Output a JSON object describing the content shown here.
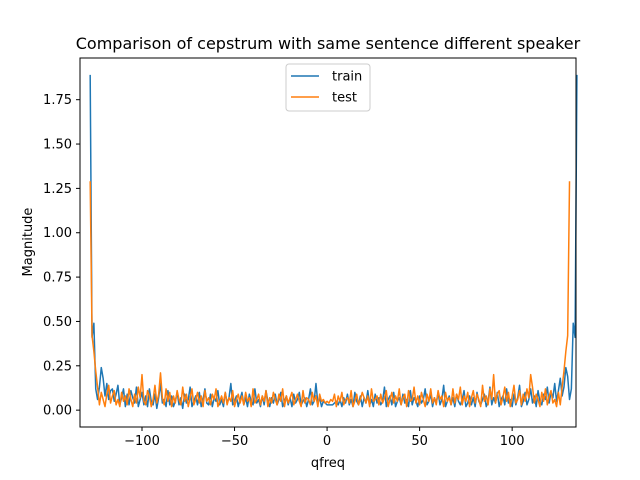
{
  "chart_data": {
    "type": "line",
    "title": "Comparison of cepstrum with same sentence different speaker",
    "xlabel": "qfreq",
    "ylabel": "Magnitude",
    "xlim": [
      -133.5,
      134.5
    ],
    "ylim": [
      -0.095,
      1.985
    ],
    "xticks": [
      -100,
      -50,
      0,
      50,
      100
    ],
    "xtick_labels": [
      "−100",
      "−50",
      "0",
      "50",
      "100"
    ],
    "yticks": [
      0.0,
      0.25,
      0.5,
      0.75,
      1.0,
      1.25,
      1.5,
      1.75
    ],
    "ytick_labels": [
      "0.00",
      "0.25",
      "0.50",
      "0.75",
      "1.00",
      "1.25",
      "1.50",
      "1.75"
    ],
    "grid": false,
    "legend_position": "top-center",
    "series": [
      {
        "name": "train",
        "color": "#1f77b4",
        "x_start": -128,
        "x_step": 1,
        "values": [
          1.89,
          0.41,
          0.49,
          0.12,
          0.06,
          0.13,
          0.24,
          0.18,
          0.08,
          0.15,
          0.06,
          0.11,
          0.12,
          0.05,
          0.09,
          0.14,
          0.03,
          0.07,
          0.12,
          0.02,
          0.09,
          0.03,
          0.11,
          0.07,
          0.04,
          0.13,
          0.02,
          0.06,
          0.1,
          0.03,
          0.08,
          0.02,
          0.12,
          0.05,
          0.03,
          0.09,
          0.01,
          0.07,
          0.15,
          0.04,
          0.06,
          0.02,
          0.11,
          0.03,
          0.08,
          0.02,
          0.05,
          0.1,
          0.03,
          0.07,
          0.01,
          0.09,
          0.04,
          0.06,
          0.13,
          0.02,
          0.05,
          0.08,
          0.03,
          0.1,
          0.02,
          0.06,
          0.12,
          0.04,
          0.03,
          0.09,
          0.02,
          0.07,
          0.05,
          0.11,
          0.03,
          0.06,
          0.02,
          0.1,
          0.04,
          0.07,
          0.15,
          0.03,
          0.05,
          0.08,
          0.02,
          0.06,
          0.1,
          0.03,
          0.07,
          0.02,
          0.09,
          0.05,
          0.03,
          0.12,
          0.04,
          0.06,
          0.02,
          0.08,
          0.03,
          0.11,
          0.05,
          0.02,
          0.07,
          0.04,
          0.09,
          0.03,
          0.06,
          0.1,
          0.02,
          0.05,
          0.08,
          0.03,
          0.07,
          0.02,
          0.09,
          0.04,
          0.06,
          0.1,
          0.03,
          0.05,
          0.07,
          0.02,
          0.06,
          0.12,
          0.03,
          0.05,
          0.15,
          0.04,
          0.07,
          0.02,
          0.05,
          0.04,
          0.03,
          0.03,
          0.03,
          0.03,
          0.04,
          0.05,
          0.03,
          0.06,
          0.02,
          0.07,
          0.04,
          0.09,
          0.03,
          0.06,
          0.02,
          0.1,
          0.05,
          0.03,
          0.08,
          0.02,
          0.07,
          0.04,
          0.11,
          0.03,
          0.06,
          0.02,
          0.09,
          0.04,
          0.07,
          0.03,
          0.05,
          0.13,
          0.02,
          0.06,
          0.08,
          0.03,
          0.1,
          0.02,
          0.05,
          0.07,
          0.03,
          0.09,
          0.04,
          0.06,
          0.02,
          0.11,
          0.03,
          0.07,
          0.05,
          0.02,
          0.08,
          0.04,
          0.06,
          0.12,
          0.03,
          0.05,
          0.09,
          0.02,
          0.07,
          0.04,
          0.1,
          0.03,
          0.06,
          0.14,
          0.02,
          0.05,
          0.08,
          0.03,
          0.07,
          0.02,
          0.09,
          0.05,
          0.03,
          0.06,
          0.11,
          0.02,
          0.04,
          0.08,
          0.03,
          0.07,
          0.02,
          0.1,
          0.05,
          0.03,
          0.06,
          0.09,
          0.02,
          0.05,
          0.13,
          0.03,
          0.07,
          0.04,
          0.1,
          0.02,
          0.06,
          0.08,
          0.03,
          0.12,
          0.04,
          0.06,
          0.02,
          0.09,
          0.03,
          0.07,
          0.14,
          0.02,
          0.05,
          0.1,
          0.03,
          0.06,
          0.12,
          0.04,
          0.08,
          0.02,
          0.11,
          0.05,
          0.03,
          0.09,
          0.06,
          0.13,
          0.04,
          0.1,
          0.07,
          0.15,
          0.05,
          0.11,
          0.18,
          0.08,
          0.13,
          0.24,
          0.19,
          0.06,
          0.12,
          0.49,
          0.41,
          1.89
        ]
      },
      {
        "name": "test",
        "color": "#ff7f0e",
        "x_start": -128,
        "x_step": 1,
        "values": [
          1.29,
          0.42,
          0.33,
          0.22,
          0.13,
          0.03,
          0.1,
          0.06,
          0.02,
          0.09,
          0.14,
          0.04,
          0.08,
          0.11,
          0.03,
          0.06,
          0.02,
          0.1,
          0.05,
          0.08,
          0.03,
          0.12,
          0.06,
          0.02,
          0.09,
          0.04,
          0.13,
          0.07,
          0.2,
          0.05,
          0.03,
          0.11,
          0.08,
          0.02,
          0.06,
          0.14,
          0.04,
          0.09,
          0.21,
          0.07,
          0.03,
          0.12,
          0.05,
          0.1,
          0.02,
          0.08,
          0.04,
          0.11,
          0.06,
          0.03,
          0.13,
          0.05,
          0.09,
          0.02,
          0.07,
          0.12,
          0.03,
          0.06,
          0.1,
          0.04,
          0.08,
          0.02,
          0.11,
          0.05,
          0.07,
          0.03,
          0.09,
          0.06,
          0.12,
          0.02,
          0.05,
          0.08,
          0.04,
          0.1,
          0.03,
          0.07,
          0.05,
          0.11,
          0.02,
          0.06,
          0.09,
          0.04,
          0.08,
          0.03,
          0.1,
          0.05,
          0.07,
          0.02,
          0.12,
          0.04,
          0.06,
          0.09,
          0.03,
          0.08,
          0.05,
          0.11,
          0.02,
          0.07,
          0.04,
          0.1,
          0.06,
          0.03,
          0.09,
          0.05,
          0.12,
          0.02,
          0.08,
          0.04,
          0.07,
          0.1,
          0.03,
          0.06,
          0.09,
          0.05,
          0.02,
          0.11,
          0.04,
          0.07,
          0.06,
          0.03,
          0.1,
          0.05,
          0.08,
          0.02,
          0.09,
          0.05,
          0.06,
          0.04,
          0.05,
          0.04,
          0.06,
          0.05,
          0.09,
          0.02,
          0.08,
          0.05,
          0.1,
          0.03,
          0.06,
          0.07,
          0.04,
          0.11,
          0.02,
          0.05,
          0.09,
          0.03,
          0.06,
          0.1,
          0.07,
          0.04,
          0.08,
          0.02,
          0.12,
          0.05,
          0.06,
          0.08,
          0.03,
          0.09,
          0.04,
          0.07,
          0.11,
          0.02,
          0.06,
          0.1,
          0.04,
          0.08,
          0.05,
          0.12,
          0.03,
          0.07,
          0.09,
          0.02,
          0.11,
          0.05,
          0.06,
          0.13,
          0.04,
          0.08,
          0.03,
          0.1,
          0.06,
          0.02,
          0.09,
          0.05,
          0.12,
          0.04,
          0.07,
          0.03,
          0.11,
          0.06,
          0.08,
          0.02,
          0.1,
          0.05,
          0.07,
          0.03,
          0.12,
          0.04,
          0.09,
          0.06,
          0.13,
          0.03,
          0.08,
          0.05,
          0.1,
          0.02,
          0.07,
          0.11,
          0.04,
          0.09,
          0.06,
          0.02,
          0.14,
          0.05,
          0.08,
          0.03,
          0.12,
          0.06,
          0.2,
          0.04,
          0.09,
          0.11,
          0.03,
          0.07,
          0.13,
          0.05,
          0.1,
          0.02,
          0.08,
          0.14,
          0.04,
          0.06,
          0.11,
          0.03,
          0.09,
          0.05,
          0.12,
          0.07,
          0.2,
          0.13,
          0.04,
          0.09,
          0.06,
          0.02,
          0.1,
          0.05,
          0.12,
          0.03,
          0.08,
          0.11,
          0.04,
          0.06,
          0.02,
          0.1,
          0.03,
          0.13,
          0.22,
          0.33,
          0.42,
          1.29
        ]
      }
    ]
  }
}
